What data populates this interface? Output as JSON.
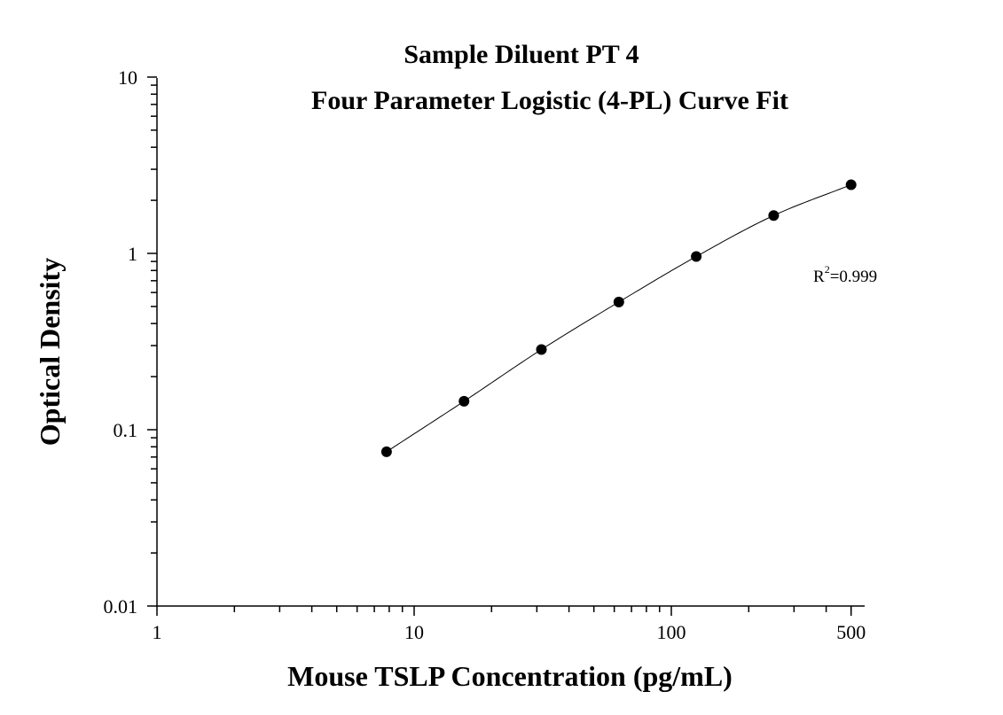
{
  "chart_data": {
    "type": "scatter",
    "title": "Sample Diluent PT 4",
    "subtitle": "Four Parameter Logistic (4-PL) Curve Fit",
    "xlabel": "Mouse TSLP Concentration (pg/mL)",
    "ylabel": "Optical Density",
    "x_scale": "log",
    "y_scale": "log",
    "xlim": [
      1,
      600
    ],
    "ylim": [
      0.01,
      10
    ],
    "x_ticks": [
      {
        "value": 1,
        "label": "1"
      },
      {
        "value": 10,
        "label": "10"
      },
      {
        "value": 100,
        "label": "100"
      },
      {
        "value": 500,
        "label": "500"
      }
    ],
    "y_ticks": [
      {
        "value": 0.01,
        "label": "0.01"
      },
      {
        "value": 0.1,
        "label": "0.1"
      },
      {
        "value": 1,
        "label": "1"
      },
      {
        "value": 10,
        "label": "10"
      }
    ],
    "grid": false,
    "legend": "none",
    "series": [
      {
        "x": [
          7.81,
          15.63,
          31.25,
          62.5,
          125,
          250,
          500
        ],
        "y": [
          0.075,
          0.145,
          0.285,
          0.53,
          0.96,
          1.64,
          2.45
        ]
      }
    ],
    "curve_fit": "4-PL",
    "annotation": {
      "base": "R",
      "sup": "2",
      "text": "=0.999"
    },
    "colors": {
      "points": "#000000",
      "line": "#000000",
      "axes": "#000000"
    }
  }
}
